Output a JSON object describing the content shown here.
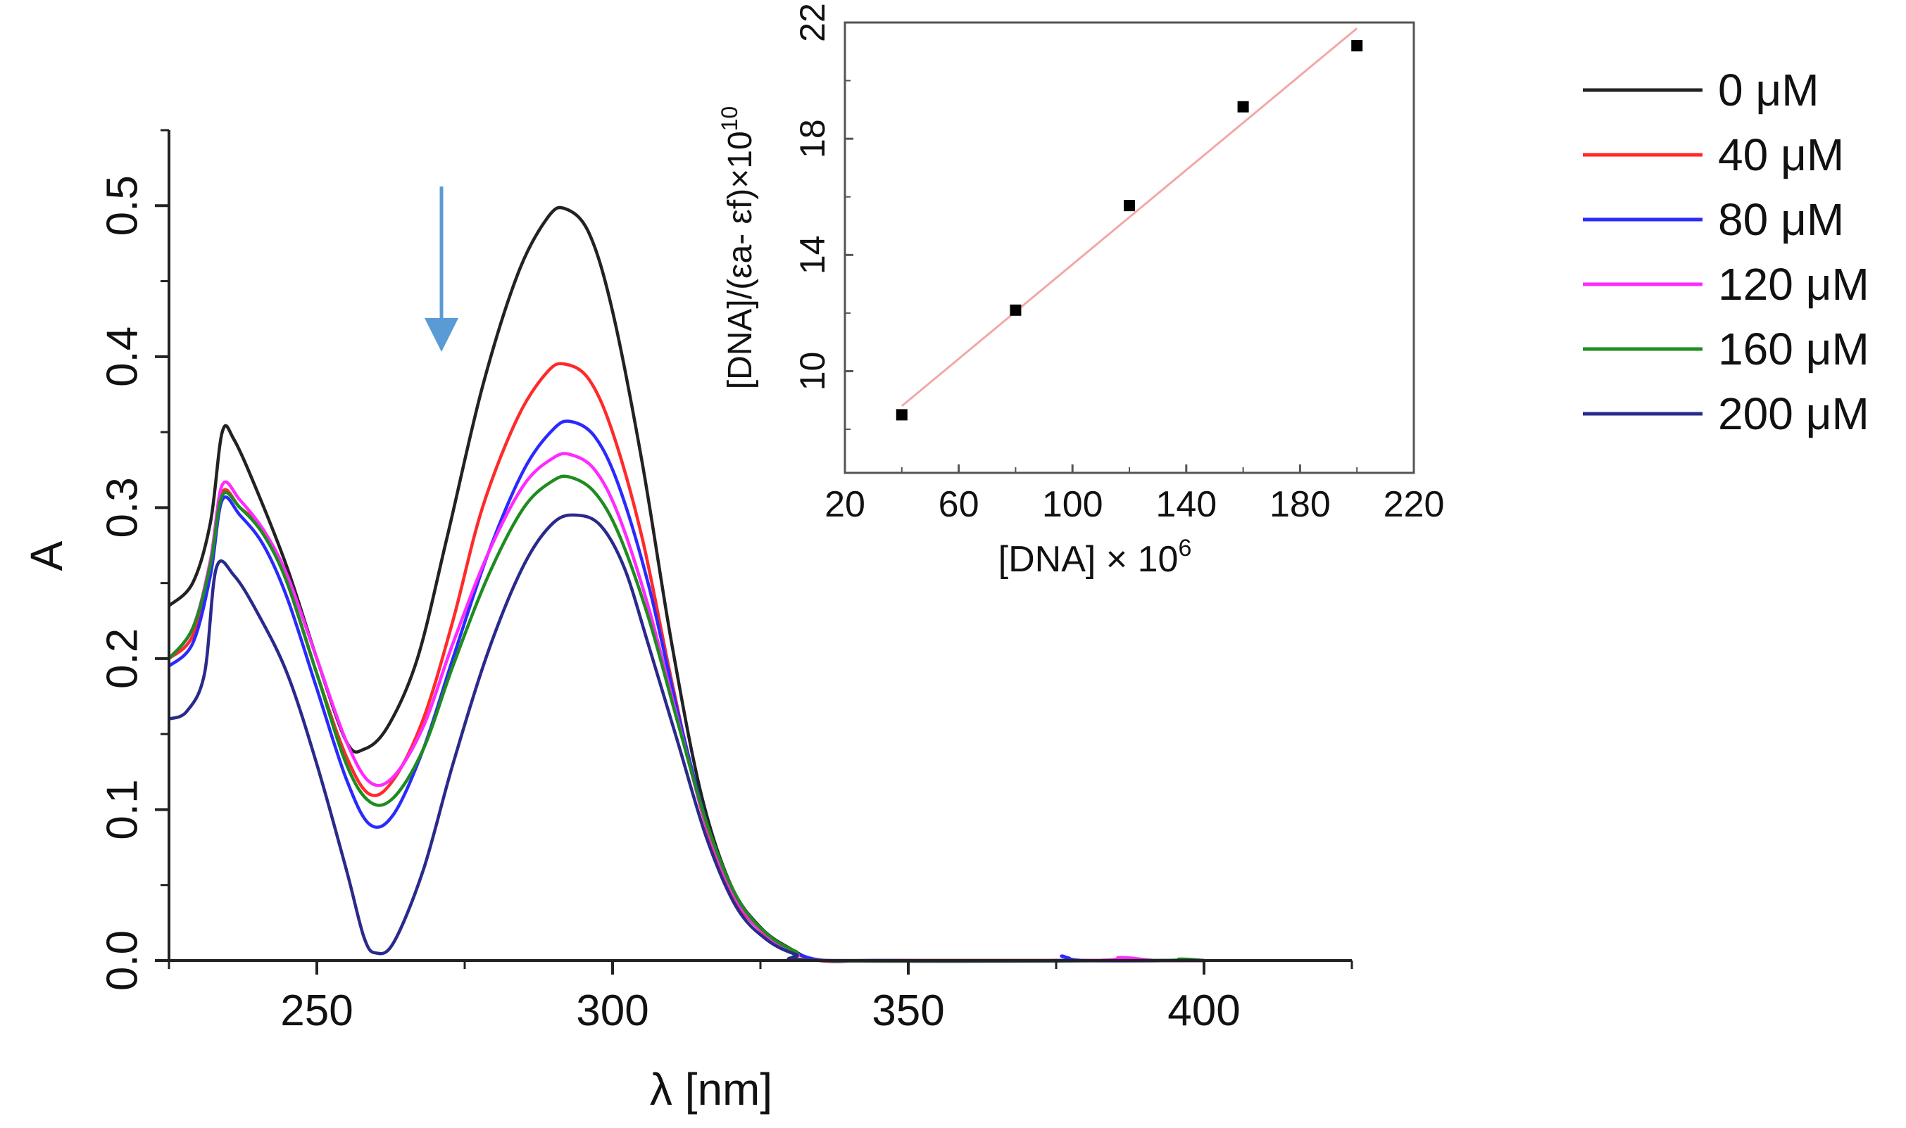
{
  "chart_data": [
    {
      "type": "line",
      "title": "",
      "xlabel": "λ [nm]",
      "ylabel": "A",
      "xlim": [
        225,
        425
      ],
      "ylim": [
        0,
        0.55
      ],
      "xticks": [
        250,
        300,
        350,
        400
      ],
      "xtick_labels": [
        "250",
        "300",
        "350",
        "400"
      ],
      "yticks": [
        0.0,
        0.1,
        0.2,
        0.3,
        0.4,
        0.5
      ],
      "ytick_labels": [
        "0.0",
        "0.1",
        "0.2",
        "0.3",
        "0.4",
        "0.5"
      ],
      "grid": false,
      "annotation": "downward arrow at ~272 nm indicating decreasing absorbance",
      "legend_position": "right",
      "series": [
        {
          "name": "0 μM",
          "color": "#222222",
          "points": [
            [
              225,
              0.235
            ],
            [
              229,
              0.25
            ],
            [
              232,
              0.29
            ],
            [
              234,
              0.35
            ],
            [
              236,
              0.345
            ],
            [
              240,
              0.31
            ],
            [
              245,
              0.26
            ],
            [
              250,
              0.2
            ],
            [
              255,
              0.145
            ],
            [
              258,
              0.14
            ],
            [
              262,
              0.155
            ],
            [
              267,
              0.2
            ],
            [
              272,
              0.28
            ],
            [
              278,
              0.38
            ],
            [
              284,
              0.455
            ],
            [
              289,
              0.492
            ],
            [
              292,
              0.498
            ],
            [
              296,
              0.482
            ],
            [
              300,
              0.43
            ],
            [
              305,
              0.33
            ],
            [
              310,
              0.21
            ],
            [
              315,
              0.11
            ],
            [
              320,
              0.05
            ],
            [
              325,
              0.022
            ],
            [
              330,
              0.008
            ],
            [
              335,
              0.0
            ],
            [
              345,
              0.0
            ],
            [
              370,
              0.0
            ],
            [
              400,
              0.0
            ]
          ]
        },
        {
          "name": "40 μM",
          "color": "#ff2a2a",
          "points": [
            [
              225,
              0.2
            ],
            [
              229,
              0.215
            ],
            [
              232,
              0.26
            ],
            [
              234,
              0.31
            ],
            [
              237,
              0.3
            ],
            [
              241,
              0.285
            ],
            [
              245,
              0.25
            ],
            [
              250,
              0.19
            ],
            [
              255,
              0.135
            ],
            [
              259,
              0.11
            ],
            [
              263,
              0.12
            ],
            [
              268,
              0.16
            ],
            [
              273,
              0.225
            ],
            [
              278,
              0.3
            ],
            [
              284,
              0.36
            ],
            [
              289,
              0.39
            ],
            [
              292,
              0.395
            ],
            [
              296,
              0.385
            ],
            [
              300,
              0.35
            ],
            [
              305,
              0.28
            ],
            [
              310,
              0.185
            ],
            [
              315,
              0.1
            ],
            [
              320,
              0.045
            ],
            [
              325,
              0.02
            ],
            [
              330,
              0.007
            ],
            [
              335,
              0.0
            ],
            [
              345,
              0.0
            ],
            [
              400,
              0.0
            ]
          ]
        },
        {
          "name": "80 μM",
          "color": "#2a2aff",
          "points": [
            [
              225,
              0.195
            ],
            [
              229,
              0.21
            ],
            [
              232,
              0.255
            ],
            [
              234,
              0.305
            ],
            [
              237,
              0.295
            ],
            [
              241,
              0.275
            ],
            [
              245,
              0.24
            ],
            [
              250,
              0.18
            ],
            [
              255,
              0.12
            ],
            [
              259,
              0.09
            ],
            [
              263,
              0.097
            ],
            [
              268,
              0.14
            ],
            [
              273,
              0.2
            ],
            [
              279,
              0.27
            ],
            [
              285,
              0.325
            ],
            [
              290,
              0.352
            ],
            [
              293,
              0.357
            ],
            [
              297,
              0.347
            ],
            [
              301,
              0.315
            ],
            [
              306,
              0.25
            ],
            [
              311,
              0.165
            ],
            [
              316,
              0.09
            ],
            [
              321,
              0.04
            ],
            [
              326,
              0.017
            ],
            [
              331,
              0.005
            ],
            [
              336,
              0.0
            ],
            [
              345,
              0.0
            ],
            [
              375,
              0.0
            ],
            [
              376,
              0.003
            ],
            [
              380,
              0.0
            ],
            [
              400,
              0.0
            ]
          ]
        },
        {
          "name": "120 μM",
          "color": "#ff2aff",
          "points": [
            [
              225,
              0.2
            ],
            [
              229,
              0.22
            ],
            [
              232,
              0.265
            ],
            [
              234,
              0.315
            ],
            [
              237,
              0.305
            ],
            [
              241,
              0.285
            ],
            [
              245,
              0.255
            ],
            [
              250,
              0.2
            ],
            [
              255,
              0.145
            ],
            [
              259,
              0.118
            ],
            [
              263,
              0.122
            ],
            [
              268,
              0.155
            ],
            [
              273,
              0.21
            ],
            [
              279,
              0.27
            ],
            [
              285,
              0.315
            ],
            [
              290,
              0.333
            ],
            [
              293,
              0.335
            ],
            [
              297,
              0.325
            ],
            [
              301,
              0.295
            ],
            [
              306,
              0.235
            ],
            [
              311,
              0.16
            ],
            [
              316,
              0.088
            ],
            [
              321,
              0.04
            ],
            [
              326,
              0.017
            ],
            [
              331,
              0.005
            ],
            [
              336,
              0.0
            ],
            [
              380,
              0.0
            ],
            [
              386,
              0.002
            ],
            [
              392,
              0.0
            ],
            [
              400,
              0.0
            ]
          ]
        },
        {
          "name": "160 μM",
          "color": "#1e8c1e",
          "points": [
            [
              225,
              0.2
            ],
            [
              229,
              0.22
            ],
            [
              232,
              0.262
            ],
            [
              234,
              0.308
            ],
            [
              237,
              0.3
            ],
            [
              241,
              0.282
            ],
            [
              245,
              0.25
            ],
            [
              250,
              0.19
            ],
            [
              255,
              0.13
            ],
            [
              259,
              0.105
            ],
            [
              263,
              0.108
            ],
            [
              268,
              0.14
            ],
            [
              273,
              0.195
            ],
            [
              279,
              0.255
            ],
            [
              285,
              0.3
            ],
            [
              290,
              0.318
            ],
            [
              293,
              0.32
            ],
            [
              297,
              0.31
            ],
            [
              301,
              0.283
            ],
            [
              306,
              0.228
            ],
            [
              311,
              0.158
            ],
            [
              316,
              0.09
            ],
            [
              321,
              0.042
            ],
            [
              326,
              0.018
            ],
            [
              331,
              0.006
            ],
            [
              336,
              0.0
            ],
            [
              390,
              0.0
            ],
            [
              396,
              0.001
            ],
            [
              400,
              0.0
            ]
          ]
        },
        {
          "name": "200 μM",
          "color": "#2a2a8c",
          "points": [
            [
              225,
              0.16
            ],
            [
              228,
              0.165
            ],
            [
              231,
              0.19
            ],
            [
              233,
              0.26
            ],
            [
              236,
              0.255
            ],
            [
              240,
              0.23
            ],
            [
              245,
              0.19
            ],
            [
              250,
              0.13
            ],
            [
              255,
              0.06
            ],
            [
              258,
              0.015
            ],
            [
              260,
              0.005
            ],
            [
              263,
              0.012
            ],
            [
              268,
              0.06
            ],
            [
              273,
              0.13
            ],
            [
              279,
              0.205
            ],
            [
              285,
              0.262
            ],
            [
              290,
              0.29
            ],
            [
              294,
              0.295
            ],
            [
              298,
              0.288
            ],
            [
              302,
              0.26
            ],
            [
              306,
              0.21
            ],
            [
              311,
              0.145
            ],
            [
              316,
              0.08
            ],
            [
              321,
              0.035
            ],
            [
              326,
              0.014
            ],
            [
              331,
              0.004
            ],
            [
              336,
              0.0
            ],
            [
              400,
              0.0
            ]
          ]
        }
      ],
      "legend": [
        {
          "label": "0 μM",
          "color": "#222222"
        },
        {
          "label": "40 μM",
          "color": "#ff2a2a"
        },
        {
          "label": "80 μM",
          "color": "#2a2aff"
        },
        {
          "label": "120 μM",
          "color": "#ff2aff"
        },
        {
          "label": "160 μM",
          "color": "#1e8c1e"
        },
        {
          "label": "200 μM",
          "color": "#2a2a8c"
        }
      ]
    },
    {
      "type": "scatter",
      "title": "",
      "xlabel": "[DNA] × 10",
      "xlabel_sup": "6",
      "ylabel": "[DNA]/(εa- εf)×10",
      "ylabel_sup": "10",
      "xlim": [
        20,
        220
      ],
      "ylim": [
        6.5,
        22
      ],
      "xticks": [
        20,
        60,
        100,
        140,
        180,
        220
      ],
      "xtick_labels": [
        "20",
        "60",
        "100",
        "140",
        "180",
        "220"
      ],
      "yticks": [
        10,
        14,
        18,
        22
      ],
      "ytick_labels": [
        "10",
        "14",
        "18",
        "22"
      ],
      "grid": false,
      "points": [
        [
          40,
          8.5
        ],
        [
          80,
          12.1
        ],
        [
          120,
          15.7
        ],
        [
          160,
          19.1
        ],
        [
          200,
          21.2
        ]
      ],
      "fit_line": {
        "x": [
          40,
          200
        ],
        "y": [
          8.8,
          21.8
        ],
        "color": "#f2a8a8"
      },
      "marker_color": "#000000"
    }
  ]
}
